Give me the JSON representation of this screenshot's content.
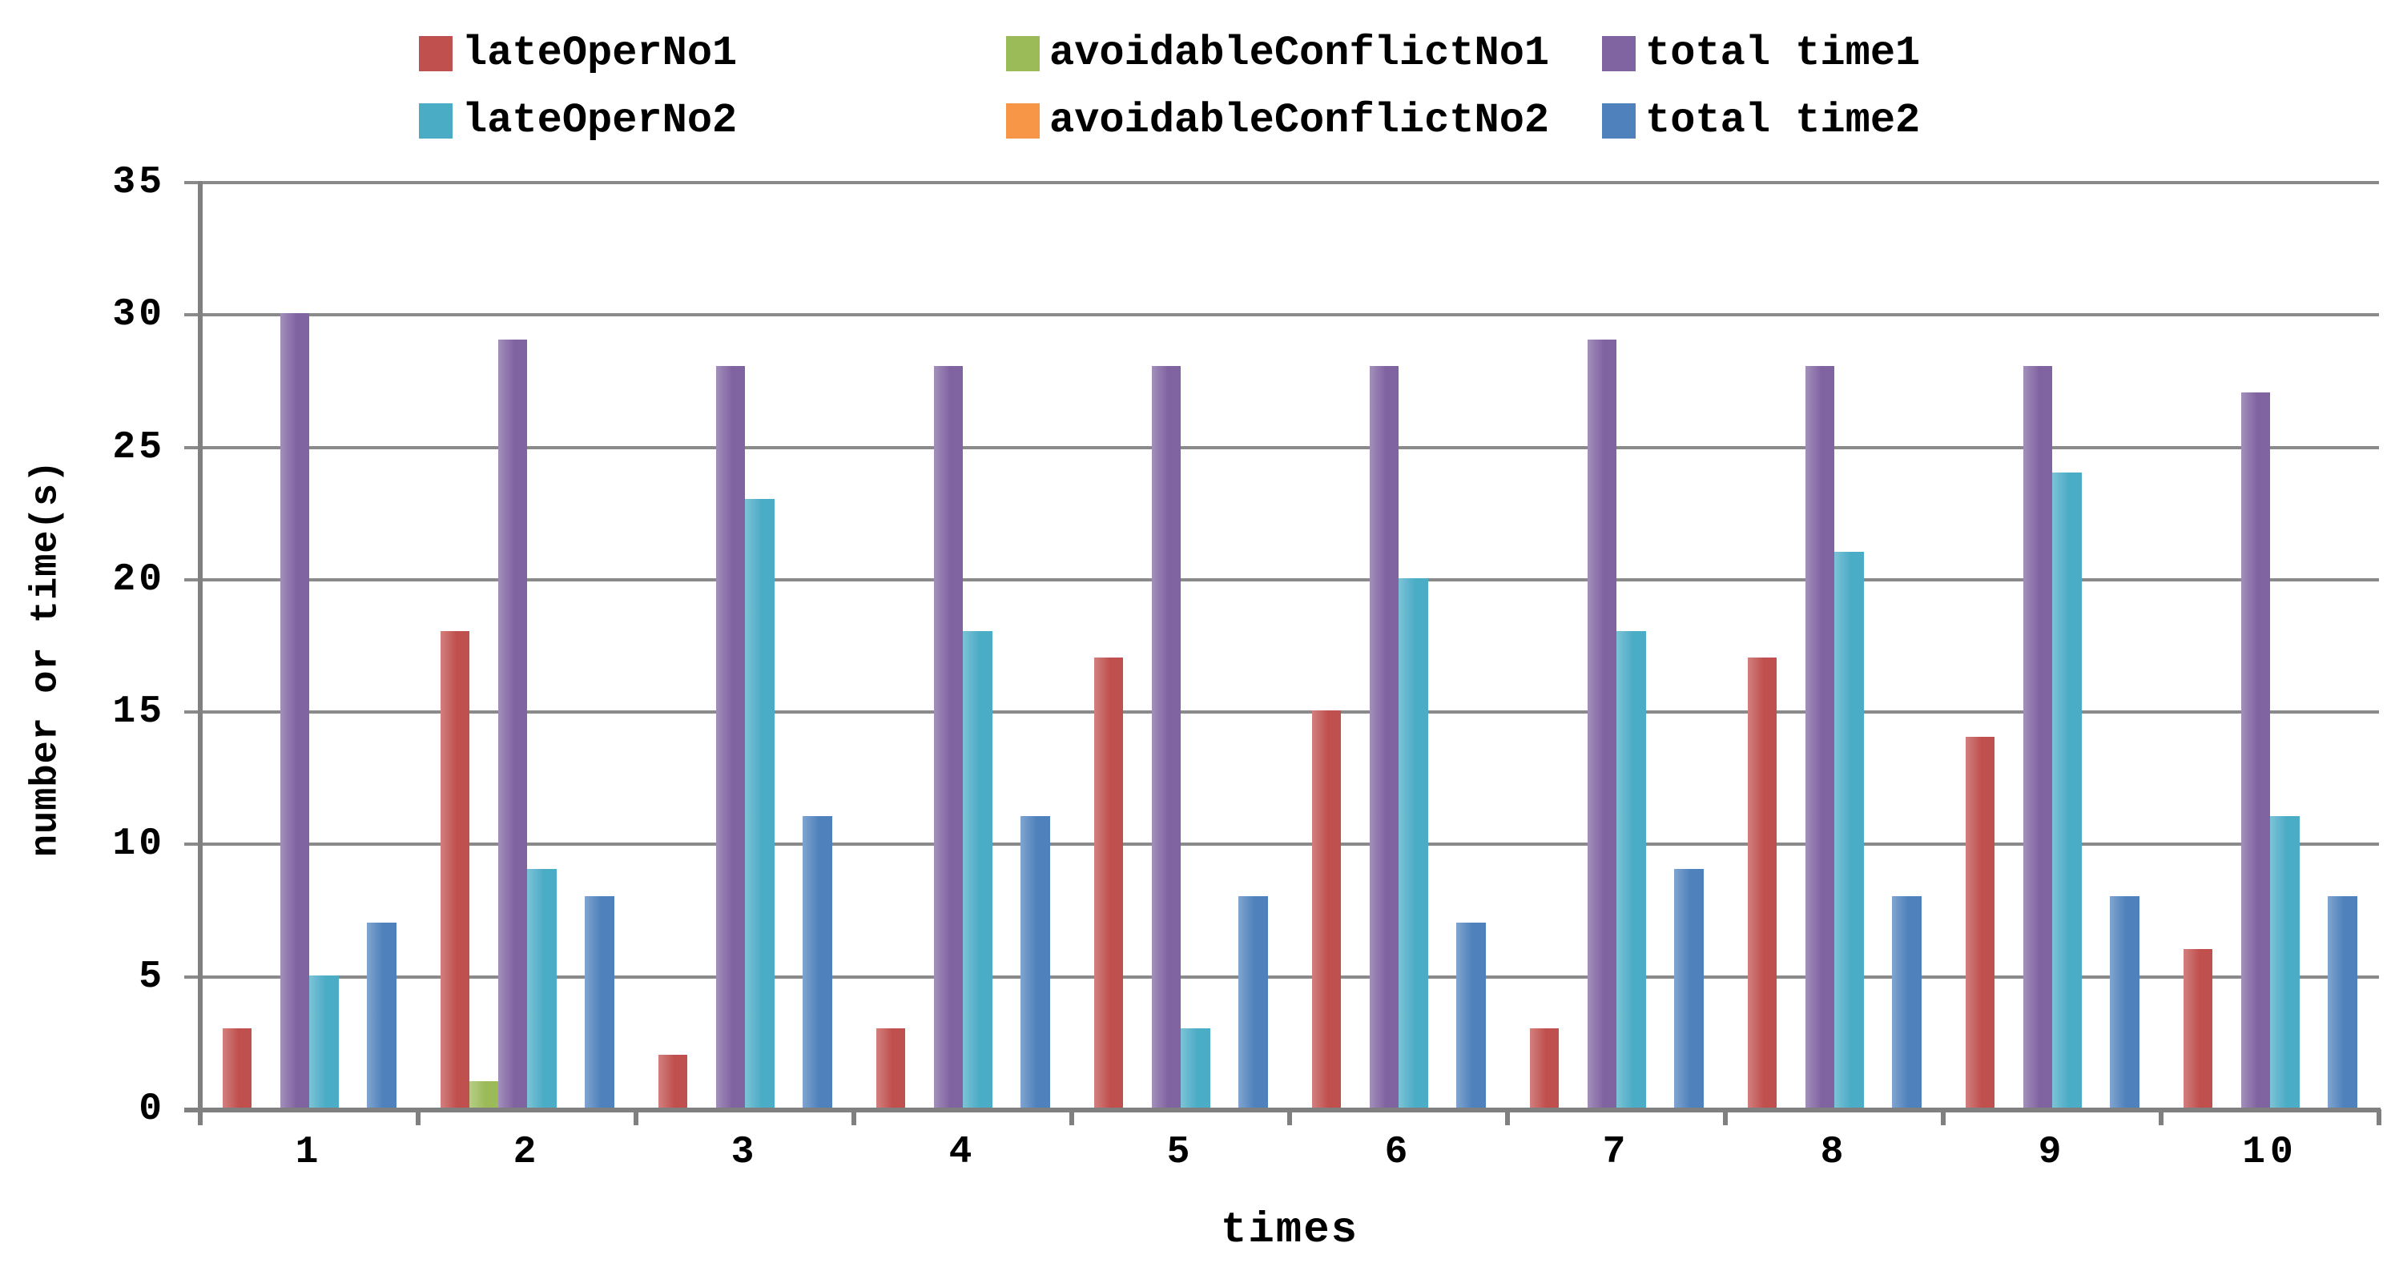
{
  "chart_data": {
    "type": "bar",
    "title": "",
    "categories": [
      "1",
      "2",
      "3",
      "4",
      "5",
      "6",
      "7",
      "8",
      "9",
      "10"
    ],
    "series": [
      {
        "name": "lateOperNo1",
        "color": "#C0504D",
        "values": [
          3,
          18,
          2,
          3,
          17,
          15,
          3,
          17,
          14,
          6
        ]
      },
      {
        "name": "avoidableConflictNo1",
        "color": "#9BBB59",
        "values": [
          0,
          1,
          0,
          0,
          0,
          0,
          0,
          0,
          0,
          0
        ]
      },
      {
        "name": "total time1",
        "color": "#8064A2",
        "values": [
          30,
          29,
          28,
          28,
          28,
          28,
          29,
          28,
          28,
          27
        ]
      },
      {
        "name": "lateOperNo2",
        "color": "#4BACC6",
        "values": [
          5,
          9,
          23,
          18,
          3,
          20,
          18,
          21,
          24,
          11
        ]
      },
      {
        "name": "avoidableConflictNo2",
        "color": "#F79646",
        "values": [
          0,
          0,
          0,
          0,
          0,
          0,
          0,
          0,
          0,
          0
        ]
      },
      {
        "name": "total time2",
        "color": "#4F81BD",
        "values": [
          7,
          8,
          11,
          11,
          8,
          7,
          9,
          8,
          8,
          8
        ]
      }
    ],
    "xlabel": "times",
    "ylabel": "number or time(s)",
    "ylim": [
      0,
      35
    ],
    "ytick_step": 5,
    "ytick_labels": [
      "0",
      "5",
      "10",
      "15",
      "20",
      "25",
      "30",
      "35"
    ],
    "grid": true,
    "legend_position": "top",
    "legend_rows": [
      [
        "lateOperNo1",
        "avoidableConflictNo1",
        "total time1"
      ],
      [
        "lateOperNo2",
        "avoidableConflictNo2",
        "total time2"
      ]
    ]
  },
  "colors": {
    "background": "#FFFFFF",
    "gridline": "#8A8A8A",
    "axis": "#808080",
    "text": "#000000"
  }
}
